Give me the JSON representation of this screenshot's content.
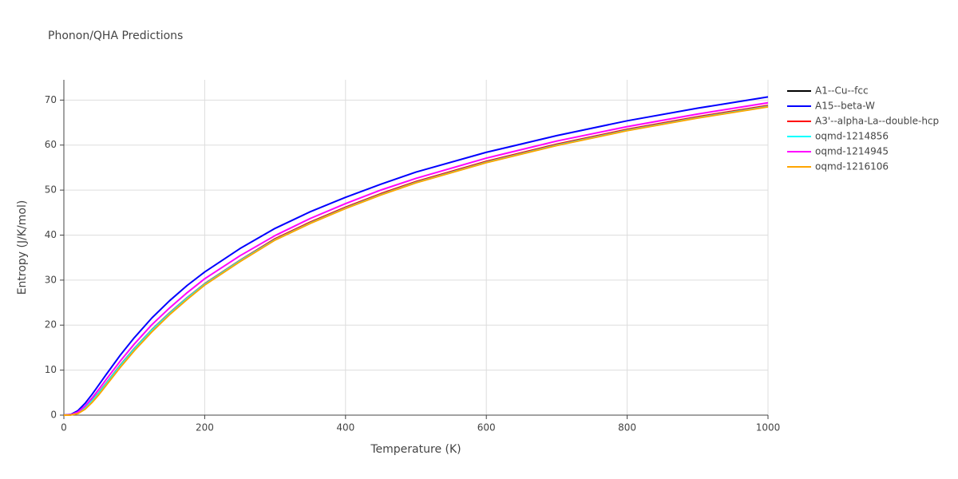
{
  "chart_data": {
    "type": "line",
    "title": "Phonon/QHA Predictions",
    "x_label": "Temperature (K)",
    "y_label": "Entropy (J/K/mol)",
    "x": [
      0,
      10,
      20,
      30,
      40,
      50,
      60,
      80,
      100,
      125,
      150,
      175,
      200,
      250,
      300,
      350,
      400,
      450,
      500,
      600,
      700,
      800,
      900,
      1000
    ],
    "series": [
      {
        "name": "A1--Cu--fcc",
        "color": "#000000",
        "values": [
          0,
          0.05,
          0.5,
          1.6,
          3.2,
          5.0,
          7.0,
          11.0,
          14.7,
          18.9,
          22.6,
          26.0,
          29.1,
          34.3,
          39.1,
          42.8,
          46.1,
          49.1,
          51.8,
          56.3,
          60.1,
          63.4,
          66.2,
          68.7
        ]
      },
      {
        "name": "A15--beta-W",
        "color": "#0000ff",
        "values": [
          0,
          0.15,
          1.0,
          2.6,
          4.6,
          6.8,
          9.0,
          13.3,
          17.2,
          21.6,
          25.4,
          28.8,
          31.8,
          37.0,
          41.5,
          45.2,
          48.4,
          51.3,
          54.0,
          58.4,
          62.1,
          65.4,
          68.2,
          70.7
        ]
      },
      {
        "name": "A3'--alpha-La--double-hcp",
        "color": "#ff0000",
        "values": [
          0,
          0.06,
          0.55,
          1.7,
          3.3,
          5.1,
          7.1,
          11.1,
          14.8,
          19.0,
          22.7,
          26.1,
          29.2,
          34.4,
          39.2,
          42.9,
          46.2,
          49.2,
          51.9,
          56.4,
          60.2,
          63.5,
          66.3,
          68.8
        ]
      },
      {
        "name": "oqmd-1214856",
        "color": "#00ffff",
        "values": [
          0,
          0.05,
          0.5,
          1.6,
          3.2,
          5.0,
          7.0,
          11.0,
          14.7,
          18.9,
          22.6,
          26.0,
          29.1,
          34.3,
          39.0,
          42.7,
          46.0,
          49.0,
          51.7,
          56.2,
          60.0,
          63.3,
          66.1,
          68.6
        ]
      },
      {
        "name": "oqmd-1214945",
        "color": "#ff00ff",
        "values": [
          0,
          0.1,
          0.7,
          2.0,
          3.8,
          5.8,
          7.9,
          12.0,
          15.8,
          20.1,
          23.8,
          27.2,
          30.3,
          35.4,
          39.9,
          43.7,
          47.0,
          50.0,
          52.6,
          57.1,
          60.9,
          64.1,
          66.9,
          69.4
        ]
      },
      {
        "name": "oqmd-1216106",
        "color": "#ffa500",
        "values": [
          0,
          0.03,
          0.35,
          1.3,
          2.8,
          4.6,
          6.6,
          10.6,
          14.3,
          18.5,
          22.3,
          25.7,
          28.9,
          34.1,
          38.9,
          42.6,
          45.9,
          48.9,
          51.6,
          56.1,
          59.9,
          63.2,
          66.0,
          68.5
        ]
      }
    ],
    "xlim": [
      0,
      1000
    ],
    "xticks": [
      0,
      200,
      400,
      600,
      800,
      1000
    ],
    "ylim": [
      0,
      74.5
    ],
    "yticks": [
      0,
      10,
      20,
      30,
      40,
      50,
      60,
      70
    ],
    "grid": true
  }
}
